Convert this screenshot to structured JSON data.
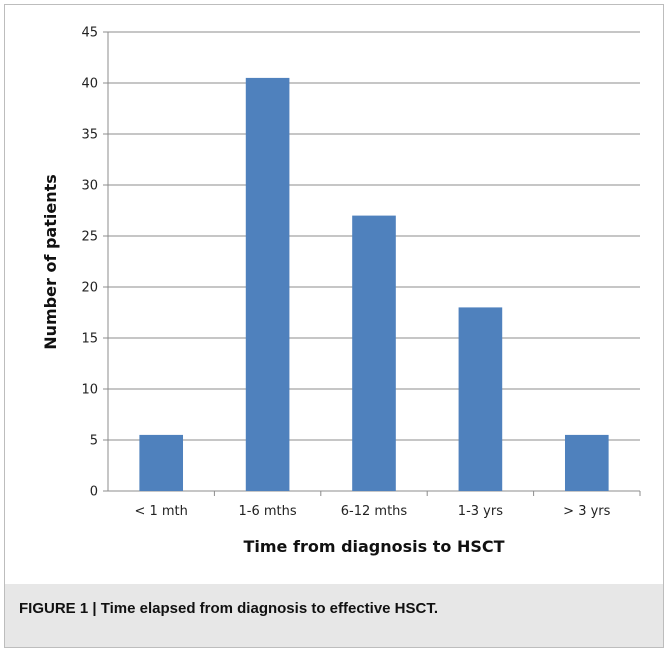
{
  "caption": "FIGURE 1 | Time elapsed from diagnosis to effective HSCT.",
  "chart_data": {
    "type": "bar",
    "categories": [
      "< 1 mth",
      "1-6 mths",
      "6-12 mths",
      "1-3 yrs",
      "> 3 yrs"
    ],
    "values": [
      5.5,
      40.5,
      27,
      18,
      5.5
    ],
    "xlabel": "Time from diagnosis to HSCT",
    "ylabel": "Number of patients",
    "ylim": [
      0,
      45
    ],
    "yticks": [
      0,
      5,
      10,
      15,
      20,
      25,
      30,
      35,
      40,
      45
    ],
    "grid": true,
    "bar_color": "#4f81bd",
    "legend": "none"
  }
}
